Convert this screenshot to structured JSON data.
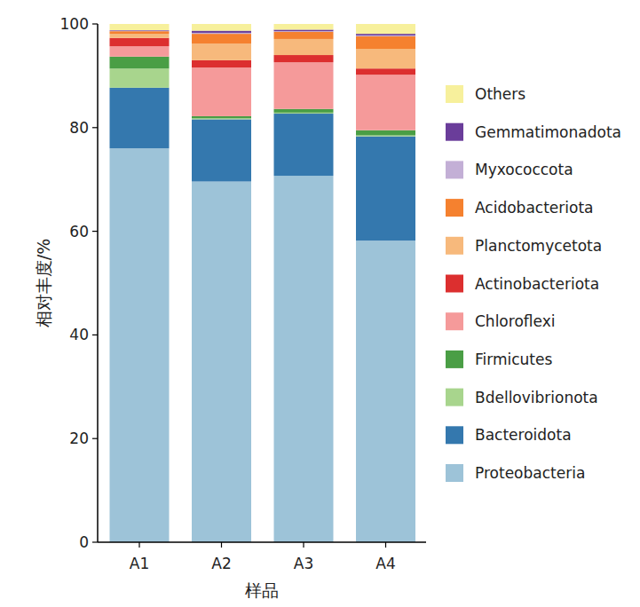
{
  "chart_data": {
    "type": "bar",
    "stacked": true,
    "x_label": "样品",
    "y_label": "相对丰度/%",
    "categories": [
      "A1",
      "A2",
      "A3",
      "A4"
    ],
    "ylim": [
      0,
      100
    ],
    "yticks": [
      0,
      20,
      40,
      60,
      80,
      100
    ],
    "legend": "right",
    "series": [
      {
        "name": "Proteobacteria",
        "color": "#9dc3d8",
        "values": [
          76.0,
          69.6,
          70.7,
          58.2
        ]
      },
      {
        "name": "Bacteroidota",
        "color": "#3478ae",
        "values": [
          11.7,
          12.0,
          12.0,
          20.1
        ]
      },
      {
        "name": "Bdellovibrionota",
        "color": "#a8d58d",
        "values": [
          3.7,
          0.2,
          0.2,
          0.2
        ]
      },
      {
        "name": "Firmicutes",
        "color": "#4a9e45",
        "values": [
          2.3,
          0.4,
          0.7,
          1.0
        ]
      },
      {
        "name": "Chloroflexi",
        "color": "#f59a9a",
        "values": [
          2.0,
          9.4,
          9.0,
          10.7
        ]
      },
      {
        "name": "Actinobacteriota",
        "color": "#dc2f2f",
        "values": [
          1.6,
          1.4,
          1.4,
          1.2
        ]
      },
      {
        "name": "Planctomycetota",
        "color": "#f7b97c",
        "values": [
          0.8,
          3.2,
          3.1,
          3.8
        ]
      },
      {
        "name": "Acidobacteriota",
        "color": "#f5812f",
        "values": [
          0.5,
          1.9,
          1.4,
          2.4
        ]
      },
      {
        "name": "Myxococcota",
        "color": "#c3afd6",
        "values": [
          0.1,
          0.2,
          0.1,
          0.2
        ]
      },
      {
        "name": "Gemmatimonadota",
        "color": "#6a3d9a",
        "values": [
          0.1,
          0.4,
          0.3,
          0.3
        ]
      },
      {
        "name": "Others",
        "color": "#f7f09c",
        "values": [
          1.2,
          1.3,
          1.1,
          1.9
        ]
      }
    ]
  }
}
